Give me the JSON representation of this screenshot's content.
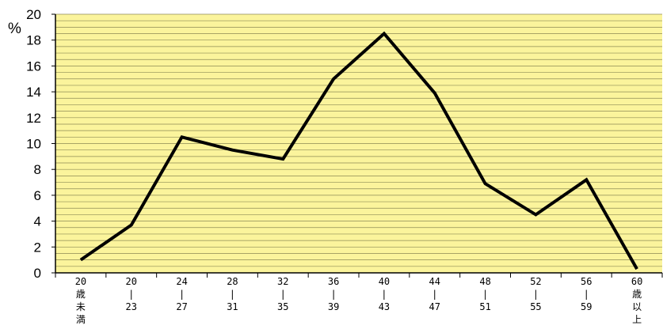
{
  "chart_data": {
    "type": "line",
    "ylabel": "%",
    "ylim": [
      0,
      20
    ],
    "yticks": [
      0,
      2,
      4,
      6,
      8,
      10,
      12,
      14,
      16,
      18,
      20
    ],
    "grid": true,
    "legend": "none",
    "colors": {
      "plot_background": "#fbf49c",
      "gridline": "#8c8a55",
      "line": "#000000"
    },
    "categories": [
      [
        "20",
        "歳",
        "未",
        "満"
      ],
      [
        "20",
        "|",
        "23"
      ],
      [
        "24",
        "|",
        "27"
      ],
      [
        "28",
        "|",
        "31"
      ],
      [
        "32",
        "|",
        "35"
      ],
      [
        "36",
        "|",
        "39"
      ],
      [
        "40",
        "|",
        "43"
      ],
      [
        "44",
        "|",
        "47"
      ],
      [
        "48",
        "|",
        "51"
      ],
      [
        "52",
        "|",
        "55"
      ],
      [
        "56",
        "|",
        "59"
      ],
      [
        "60",
        "歳",
        "以",
        "上"
      ]
    ],
    "values": [
      1.0,
      3.7,
      10.5,
      9.5,
      8.8,
      15.0,
      18.5,
      13.9,
      6.9,
      4.5,
      7.2,
      0.3
    ]
  }
}
